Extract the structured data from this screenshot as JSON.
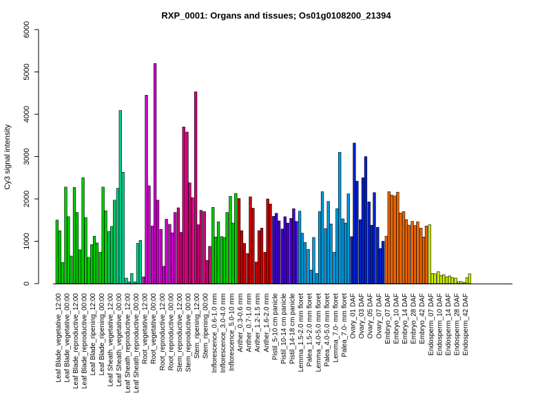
{
  "chart_data": {
    "type": "bar",
    "title": "RXP_0001: Organs and tissues; Os01g0108200_21394",
    "xlabel": "",
    "ylabel": "Cy3 signal intensity",
    "ylim": [
      0,
      6000
    ],
    "yticks": [
      0,
      1000,
      2000,
      3000,
      4000,
      5000,
      6000
    ],
    "categories": [
      "Leaf Blade_vegetative_12:00",
      "Leaf Blade_vegetative_00:00",
      "Leaf Blade_reproductive_12:00",
      "Leaf Blade_reproductive_00:00",
      "Leaf Blade_ripening_12:00",
      "Leaf Blade_ripening_00:00",
      "Leaf Sheath_vegetative_12:00",
      "Leaf Sheath_vegetative_00:00",
      "Leaf Sheath_reproductive_12:00",
      "Leaf Sheath_reproductive_00:00",
      "Root_vegetative_12:00",
      "Root_vegetative_00:00",
      "Root_reproductive_12:00",
      "Root_reproductive_00:00",
      "Stem_reproductive_12:00",
      "Stem_reproductive_00:00",
      "Stem_ripening_12:00",
      "Stem_ripening_00:00",
      "Inflorescence_0.6-1.0 mm",
      "Inflorescence_3.0-4.0 mm",
      "Inflorescence_5.0-10 mm",
      "Anther_0.3-0.6 mm",
      "Anther_0.7-1.0 mm",
      "Anther_1.2-1.5 mm",
      "Anther_1.6-2.0 mm",
      "Pistil_5-10 cm panicle",
      "Pistil_10-14 cm panicle",
      "Pistil_14-18 cm panicle",
      "Lemma_1.5-2.0 mm floret",
      "Palea_1.5-2.0 mm floret",
      "Lemma_4.0-5.0 mm floret",
      "Palea_4.0-5.0 mm floret",
      "Lemma_7.0- mm floret",
      "Palea_7.0- mm floret",
      "Ovary_01 DAF",
      "Ovary_03 DAF",
      "Ovary_05 DAF",
      "Ovary_07 DAF",
      "Embryo_07 DAF",
      "Embryo_10 DAF",
      "Embryo_14 DAF",
      "Embryo_28 DAF",
      "Embryo_42 DAF",
      "Endosperm_07 DAF",
      "Endosperm_10 DAF",
      "Endosperm_14 DAF",
      "Endosperm_28 DAF",
      "Endosperm_42 DAF"
    ],
    "values": [
      [
        1500,
        1250,
        500
      ],
      [
        2280,
        1580,
        650
      ],
      [
        2270,
        1680,
        800
      ],
      [
        2500,
        1560,
        620
      ],
      [
        920,
        1120,
        960
      ],
      [
        740,
        2280,
        1720
      ],
      [
        1230,
        1350,
        1970
      ],
      [
        2250,
        4090,
        2630
      ],
      [
        130,
        40,
        240
      ],
      [
        40,
        950,
        1020
      ],
      [
        160,
        4450,
        2310
      ],
      [
        1360,
        5200,
        1970
      ],
      [
        1280,
        410,
        1520
      ],
      [
        1400,
        1200,
        1680
      ],
      [
        1790,
        1210,
        3700
      ],
      [
        3580,
        2380,
        2030
      ],
      [
        4530,
        1390,
        1730
      ],
      [
        1700,
        550,
        880
      ],
      [
        1800,
        1100,
        1460
      ],
      [
        1110,
        1090,
        1680
      ],
      [
        2060,
        1430,
        2130
      ],
      [
        2010,
        1250,
        950
      ],
      [
        710,
        2050,
        1780
      ],
      [
        510,
        1250,
        1310
      ],
      [
        740,
        2000,
        1880
      ],
      [
        1590,
        1660,
        1480
      ],
      [
        1290,
        1580,
        1430
      ],
      [
        1540,
        1770,
        1470
      ],
      [
        1710,
        1190,
        970
      ],
      [
        810,
        320,
        1090
      ],
      [
        240,
        1700,
        2170
      ],
      [
        1300,
        1940,
        1410
      ],
      [
        740,
        1770,
        3100
      ],
      [
        1530,
        1430,
        2120
      ],
      [
        1110,
        3320,
        2420
      ],
      [
        1510,
        2500,
        3000
      ],
      [
        1930,
        1380,
        2150
      ],
      [
        1330,
        830,
        1000
      ],
      [
        1120,
        2170,
        2090
      ],
      [
        2070,
        2160,
        1670
      ],
      [
        1700,
        1510,
        1380
      ],
      [
        1470,
        1370,
        1460
      ],
      [
        1310,
        1100,
        1360
      ],
      [
        1390,
        240,
        230
      ],
      [
        280,
        190,
        210
      ],
      [
        160,
        180,
        140
      ],
      [
        130,
        40,
        50
      ],
      [
        30,
        140,
        230
      ]
    ],
    "colors": [
      "#00cc00",
      "#00cc00",
      "#00cc00",
      "#00cc00",
      "#00cc00",
      "#00cc00",
      "#00cc55",
      "#00cc88",
      "#00cc88",
      "#00cc88",
      "#cc00cc",
      "#cc00cc",
      "#cc00cc",
      "#cc00cc",
      "#cc0077",
      "#cc0077",
      "#cc0077",
      "#cc0077",
      "#00cc00",
      "#00cc00",
      "#00cc00",
      "#cc0000",
      "#cc0000",
      "#cc0000",
      "#cc0000",
      "#4400cc",
      "#4400cc",
      "#4400cc",
      "#0099dd",
      "#0099dd",
      "#0099dd",
      "#0099dd",
      "#0099dd",
      "#0099dd",
      "#0022cc",
      "#0022cc",
      "#0022cc",
      "#0022cc",
      "#ee6600",
      "#ee6600",
      "#ee6600",
      "#ee6600",
      "#ee6600",
      "#ccee00",
      "#ccee00",
      "#ccee00",
      "#ccee00",
      "#ccee00"
    ],
    "grid": false,
    "legend": "none"
  }
}
